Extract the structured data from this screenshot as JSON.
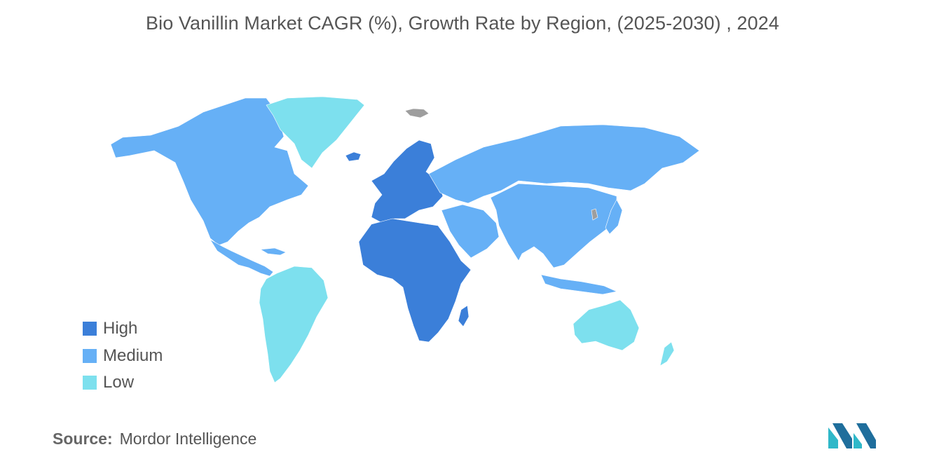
{
  "title": "Bio Vanillin Market CAGR (%), Growth Rate by Region, (2025-2030)  , 2024",
  "legend": [
    {
      "label": "High",
      "color": "#3b7fd9"
    },
    {
      "label": "Medium",
      "color": "#66b0f6"
    },
    {
      "label": "Low",
      "color": "#7de0ee"
    }
  ],
  "no_data_color": "#9e9e9e",
  "regions": {
    "north_america": "Medium",
    "greenland": "Low",
    "central_america": "Medium",
    "south_america": "Low",
    "europe": "High",
    "africa": "High",
    "middle_east": "Medium",
    "russia_central_asia": "Medium",
    "asia_pacific": "Medium",
    "australia_new_zealand": "Low"
  },
  "source": {
    "label": "Source:",
    "value": "Mordor Intelligence"
  },
  "logo_icon": "mordor-intelligence-logo-icon"
}
